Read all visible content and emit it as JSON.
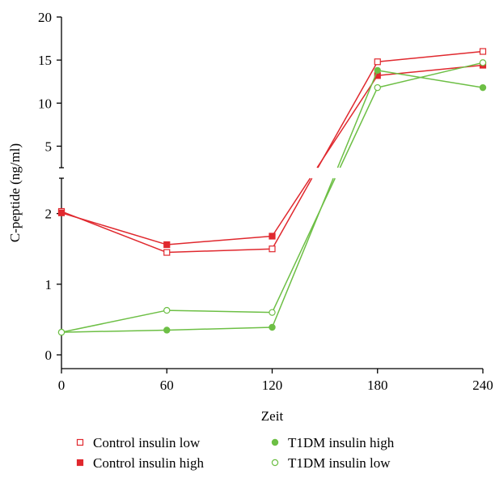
{
  "chart_data": {
    "type": "line",
    "title": "",
    "xlabel": "Zeit",
    "ylabel": "C-peptide (ng/ml)",
    "x_ticks": [
      0,
      60,
      120,
      180,
      240
    ],
    "x_range": [
      0,
      240
    ],
    "y_axis_broken": true,
    "y_lower": {
      "range": [
        0,
        2.5
      ],
      "ticks": [
        0,
        1,
        2
      ]
    },
    "y_upper": {
      "range": [
        2.5,
        20
      ],
      "ticks": [
        5,
        10,
        15,
        20
      ]
    },
    "grid": false,
    "legend_position": "bottom",
    "x": [
      0,
      60,
      120,
      180,
      240
    ],
    "series": [
      {
        "name": "Control insulin low",
        "color": "#e0282e",
        "marker": "square-open",
        "values": [
          2.03,
          1.45,
          1.5,
          14.8,
          16.0
        ]
      },
      {
        "name": "Control insulin high",
        "color": "#e0282e",
        "marker": "square-filled",
        "values": [
          2.01,
          1.56,
          1.68,
          13.2,
          14.4
        ]
      },
      {
        "name": "T1DM insulin high",
        "color": "#6dbf45",
        "marker": "circle-filled",
        "values": [
          0.32,
          0.35,
          0.39,
          13.8,
          11.8
        ]
      },
      {
        "name": "T1DM insulin low",
        "color": "#6dbf45",
        "marker": "circle-open",
        "values": [
          0.32,
          0.63,
          0.6,
          11.8,
          14.7
        ]
      }
    ]
  }
}
